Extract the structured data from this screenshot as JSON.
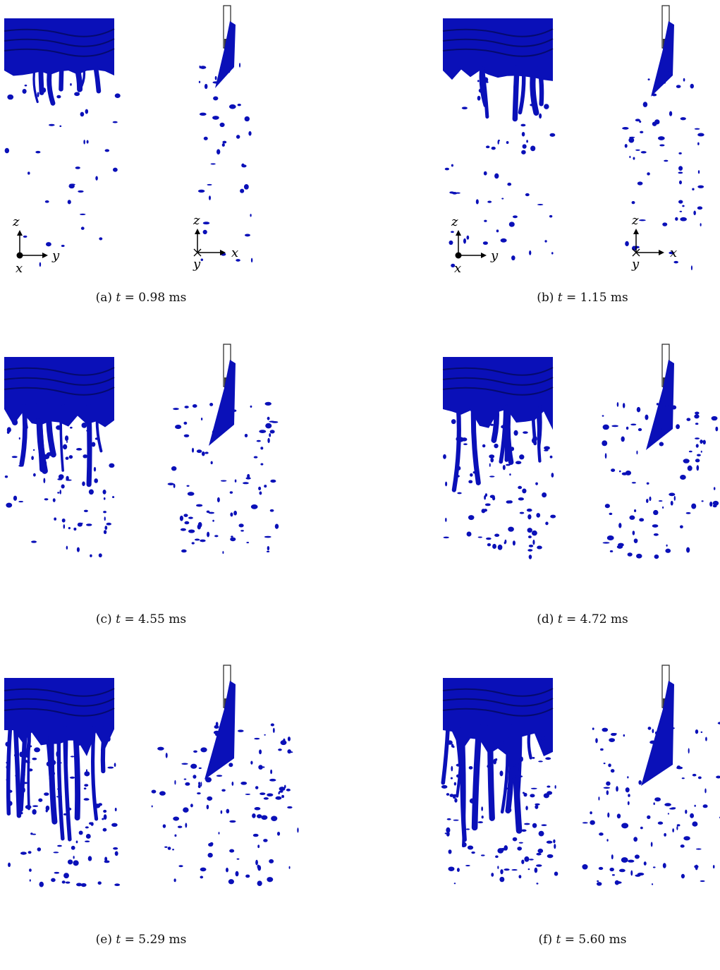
{
  "figure": {
    "panels": [
      {
        "letter": "(a)",
        "t_var": "t",
        "t_value": "= 0.98 ms",
        "seed": 11,
        "intensity": 0.5,
        "show_axes": true
      },
      {
        "letter": "(b)",
        "t_var": "t",
        "t_value": "= 1.15 ms",
        "seed": 23,
        "intensity": 0.9,
        "show_axes": true
      },
      {
        "letter": "(c)",
        "t_var": "t",
        "t_value": "= 4.55 ms",
        "seed": 37,
        "intensity": 1.4,
        "show_axes": false
      },
      {
        "letter": "(d)",
        "t_var": "t",
        "t_value": "= 4.72 ms",
        "seed": 41,
        "intensity": 1.6,
        "show_axes": false
      },
      {
        "letter": "(e)",
        "t_var": "t",
        "t_value": "= 5.29 ms",
        "seed": 53,
        "intensity": 2.0,
        "show_axes": false
      },
      {
        "letter": "(f)",
        "t_var": "t",
        "t_value": "= 5.60 ms",
        "seed": 67,
        "intensity": 2.3,
        "show_axes": false
      }
    ],
    "axes_left": {
      "up": "z",
      "right": "y",
      "out": "x"
    },
    "axes_right": {
      "up": "z",
      "right": "x",
      "into": "y"
    },
    "colors": {
      "liquid": "#0a10b8",
      "liquid_dark": "#050a6e",
      "nozzle": "#3a3a3a"
    }
  }
}
